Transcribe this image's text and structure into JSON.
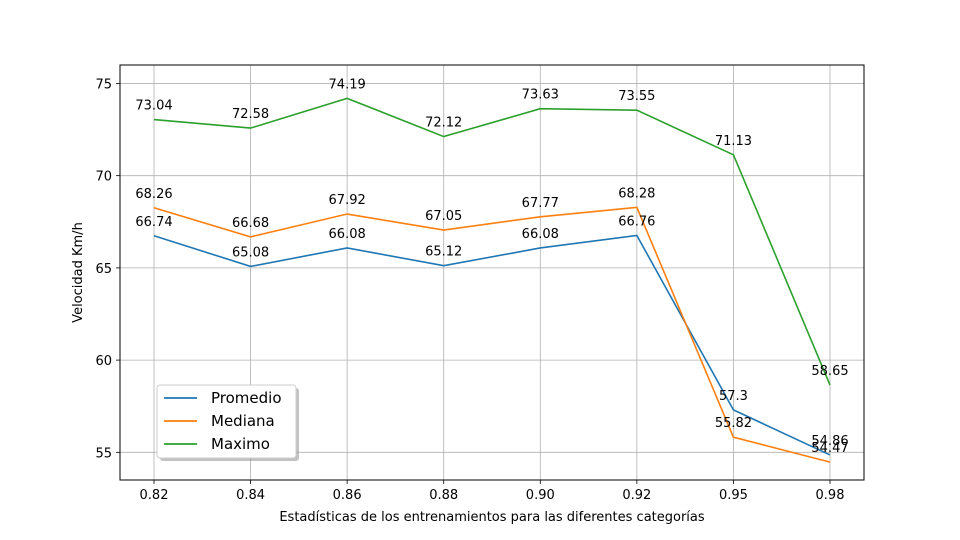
{
  "chart_data": {
    "type": "line",
    "categories": [
      "0.82",
      "0.84",
      "0.86",
      "0.88",
      "0.90",
      "0.92",
      "0.95",
      "0.98"
    ],
    "xlabel": "Estadísticas de los entrenamientos para las diferentes categorías",
    "ylabel": "Velocidad Km/h",
    "ylim": [
      53.5,
      76
    ],
    "yticks": [
      55,
      60,
      65,
      70,
      75
    ],
    "grid": true,
    "legend_position": "lower-left",
    "series": [
      {
        "name": "Promedio",
        "color": "#1f77b4",
        "values": [
          66.74,
          65.08,
          66.08,
          65.12,
          66.08,
          66.76,
          57.3,
          54.86
        ],
        "labels": [
          "66.74",
          "65.08",
          "66.08",
          "65.12",
          "66.08",
          "66.76",
          "57.3",
          "54.86"
        ]
      },
      {
        "name": "Mediana",
        "color": "#ff7f0e",
        "values": [
          68.26,
          66.68,
          67.92,
          67.05,
          67.77,
          68.28,
          55.82,
          54.47
        ],
        "labels": [
          "68.26",
          "66.68",
          "67.92",
          "67.05",
          "67.77",
          "68.28",
          "55.82",
          "54.47"
        ]
      },
      {
        "name": "Maximo",
        "color": "#2ca02c",
        "values": [
          73.04,
          72.58,
          74.19,
          72.12,
          73.63,
          73.55,
          71.13,
          58.65
        ],
        "labels": [
          "73.04",
          "72.58",
          "74.19",
          "72.12",
          "73.63",
          "73.55",
          "71.13",
          "58.65"
        ]
      }
    ]
  }
}
